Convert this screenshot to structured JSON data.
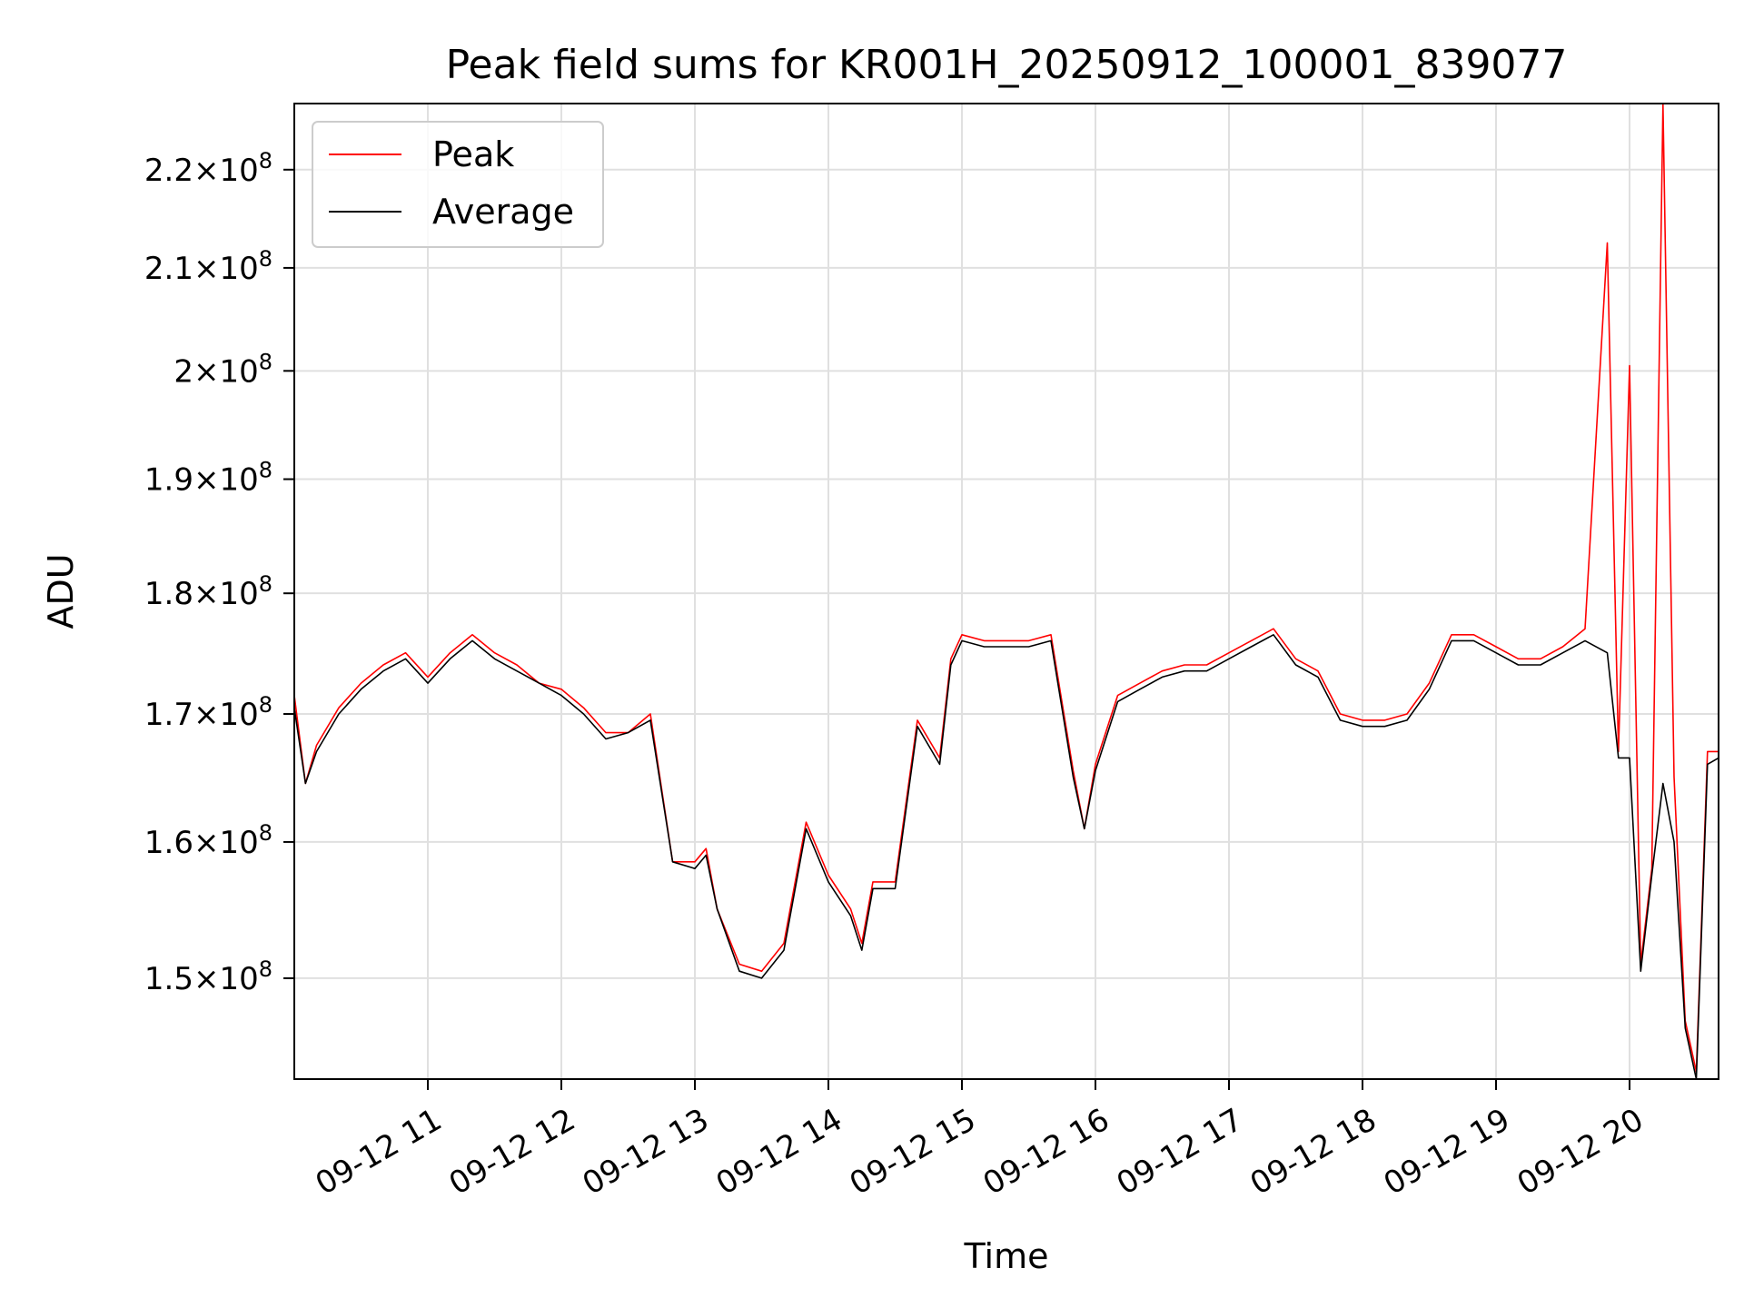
{
  "chart_data": {
    "type": "line",
    "title": "Peak field sums for KR001H_20250912_100001_839077",
    "xlabel": "Time",
    "ylabel": "ADU",
    "yscale": "log",
    "xlim": [
      "2025-09-12 10:00",
      "2025-09-12 20:40"
    ],
    "ylim": [
      143000000,
      227000000
    ],
    "grid": true,
    "legend_position": "upper-left",
    "x_ticks": [
      "09-12 11",
      "09-12 12",
      "09-12 13",
      "09-12 14",
      "09-12 15",
      "09-12 16",
      "09-12 17",
      "09-12 18",
      "09-12 19",
      "09-12 20"
    ],
    "y_ticks": [
      {
        "value": 150000000,
        "mantissa": "1.5",
        "exp": "8"
      },
      {
        "value": 160000000,
        "mantissa": "1.6",
        "exp": "8"
      },
      {
        "value": 170000000,
        "mantissa": "1.7",
        "exp": "8"
      },
      {
        "value": 180000000,
        "mantissa": "1.8",
        "exp": "8"
      },
      {
        "value": 190000000,
        "mantissa": "1.9",
        "exp": "8"
      },
      {
        "value": 200000000,
        "mantissa": "2",
        "exp": "8"
      },
      {
        "value": 210000000,
        "mantissa": "2.1",
        "exp": "8"
      },
      {
        "value": 220000000,
        "mantissa": "2.2",
        "exp": "8"
      }
    ],
    "x": [
      "10:00",
      "10:05",
      "10:10",
      "10:20",
      "10:30",
      "10:40",
      "10:50",
      "11:00",
      "11:10",
      "11:20",
      "11:30",
      "11:40",
      "11:50",
      "12:00",
      "12:10",
      "12:20",
      "12:30",
      "12:40",
      "12:50",
      "13:00",
      "13:05",
      "13:10",
      "13:20",
      "13:30",
      "13:40",
      "13:50",
      "14:00",
      "14:10",
      "14:15",
      "14:20",
      "14:30",
      "14:40",
      "14:50",
      "14:55",
      "15:00",
      "15:10",
      "15:20",
      "15:30",
      "15:40",
      "15:50",
      "15:55",
      "16:00",
      "16:10",
      "16:20",
      "16:30",
      "16:40",
      "16:50",
      "17:00",
      "17:10",
      "17:20",
      "17:30",
      "17:40",
      "17:50",
      "18:00",
      "18:10",
      "18:20",
      "18:30",
      "18:40",
      "18:50",
      "19:00",
      "19:10",
      "19:20",
      "19:30",
      "19:40",
      "19:50",
      "19:55",
      "20:00",
      "20:05",
      "20:10",
      "20:15",
      "20:20",
      "20:25",
      "20:30",
      "20:35",
      "20:40"
    ],
    "series": [
      {
        "name": "Peak",
        "color": "#ff0000",
        "values": [
          171500000,
          164500000,
          167500000,
          170500000,
          172500000,
          174000000,
          175000000,
          173000000,
          175000000,
          176500000,
          175000000,
          174000000,
          172500000,
          172000000,
          170500000,
          168500000,
          168500000,
          170000000,
          158500000,
          158500000,
          159500000,
          155000000,
          151000000,
          150500000,
          152500000,
          161500000,
          157500000,
          155000000,
          152500000,
          157000000,
          157000000,
          169500000,
          166500000,
          174500000,
          176500000,
          176000000,
          176000000,
          176000000,
          176500000,
          165500000,
          161000000,
          166000000,
          171500000,
          172500000,
          173500000,
          174000000,
          174000000,
          175000000,
          176000000,
          177000000,
          174500000,
          173500000,
          170000000,
          169500000,
          169500000,
          170000000,
          172500000,
          176500000,
          176500000,
          175500000,
          174500000,
          174500000,
          175500000,
          177000000,
          212500000,
          167000000,
          200500000,
          151000000,
          158000000,
          227000000,
          165000000,
          147000000,
          143500000,
          167000000,
          167000000
        ]
      },
      {
        "name": "Average",
        "color": "#000000",
        "values": [
          170500000,
          164500000,
          167000000,
          170000000,
          172000000,
          173500000,
          174500000,
          172500000,
          174500000,
          176000000,
          174500000,
          173500000,
          172500000,
          171500000,
          170000000,
          168000000,
          168500000,
          169500000,
          158500000,
          158000000,
          159000000,
          155000000,
          150500000,
          150000000,
          152000000,
          161000000,
          157000000,
          154500000,
          152000000,
          156500000,
          156500000,
          169000000,
          166000000,
          174000000,
          176000000,
          175500000,
          175500000,
          175500000,
          176000000,
          165000000,
          161000000,
          165500000,
          171000000,
          172000000,
          173000000,
          173500000,
          173500000,
          174500000,
          175500000,
          176500000,
          174000000,
          173000000,
          169500000,
          169000000,
          169000000,
          169500000,
          172000000,
          176000000,
          176000000,
          175000000,
          174000000,
          174000000,
          175000000,
          176000000,
          175000000,
          166500000,
          166500000,
          150500000,
          157500000,
          164500000,
          160000000,
          146500000,
          143000000,
          166000000,
          166500000
        ]
      }
    ]
  }
}
